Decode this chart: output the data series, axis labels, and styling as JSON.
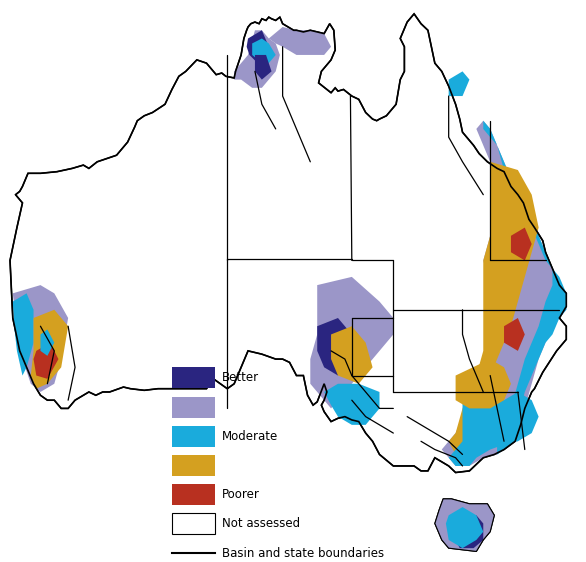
{
  "title": "",
  "legend_items": [
    {
      "label": "Better",
      "color": "#2a2580",
      "type": "patch"
    },
    {
      "label": "",
      "color": "#9b96c8",
      "type": "patch"
    },
    {
      "label": "Moderate",
      "color": "#1aabdc",
      "type": "patch"
    },
    {
      "label": "",
      "color": "#d4a020",
      "type": "patch"
    },
    {
      "label": "Poorer",
      "color": "#b83020",
      "type": "patch"
    },
    {
      "label": "Not assessed",
      "color": "#ffffff",
      "type": "patch_outline"
    },
    {
      "label": "Basin and state boundaries",
      "color": "#000000",
      "type": "line"
    }
  ],
  "background_color": "#ffffff",
  "figsize": [
    5.86,
    5.62
  ],
  "dpi": 100,
  "lon_min": 113.0,
  "lon_max": 154.5,
  "lat_min": -44.0,
  "lat_max": -10.5
}
